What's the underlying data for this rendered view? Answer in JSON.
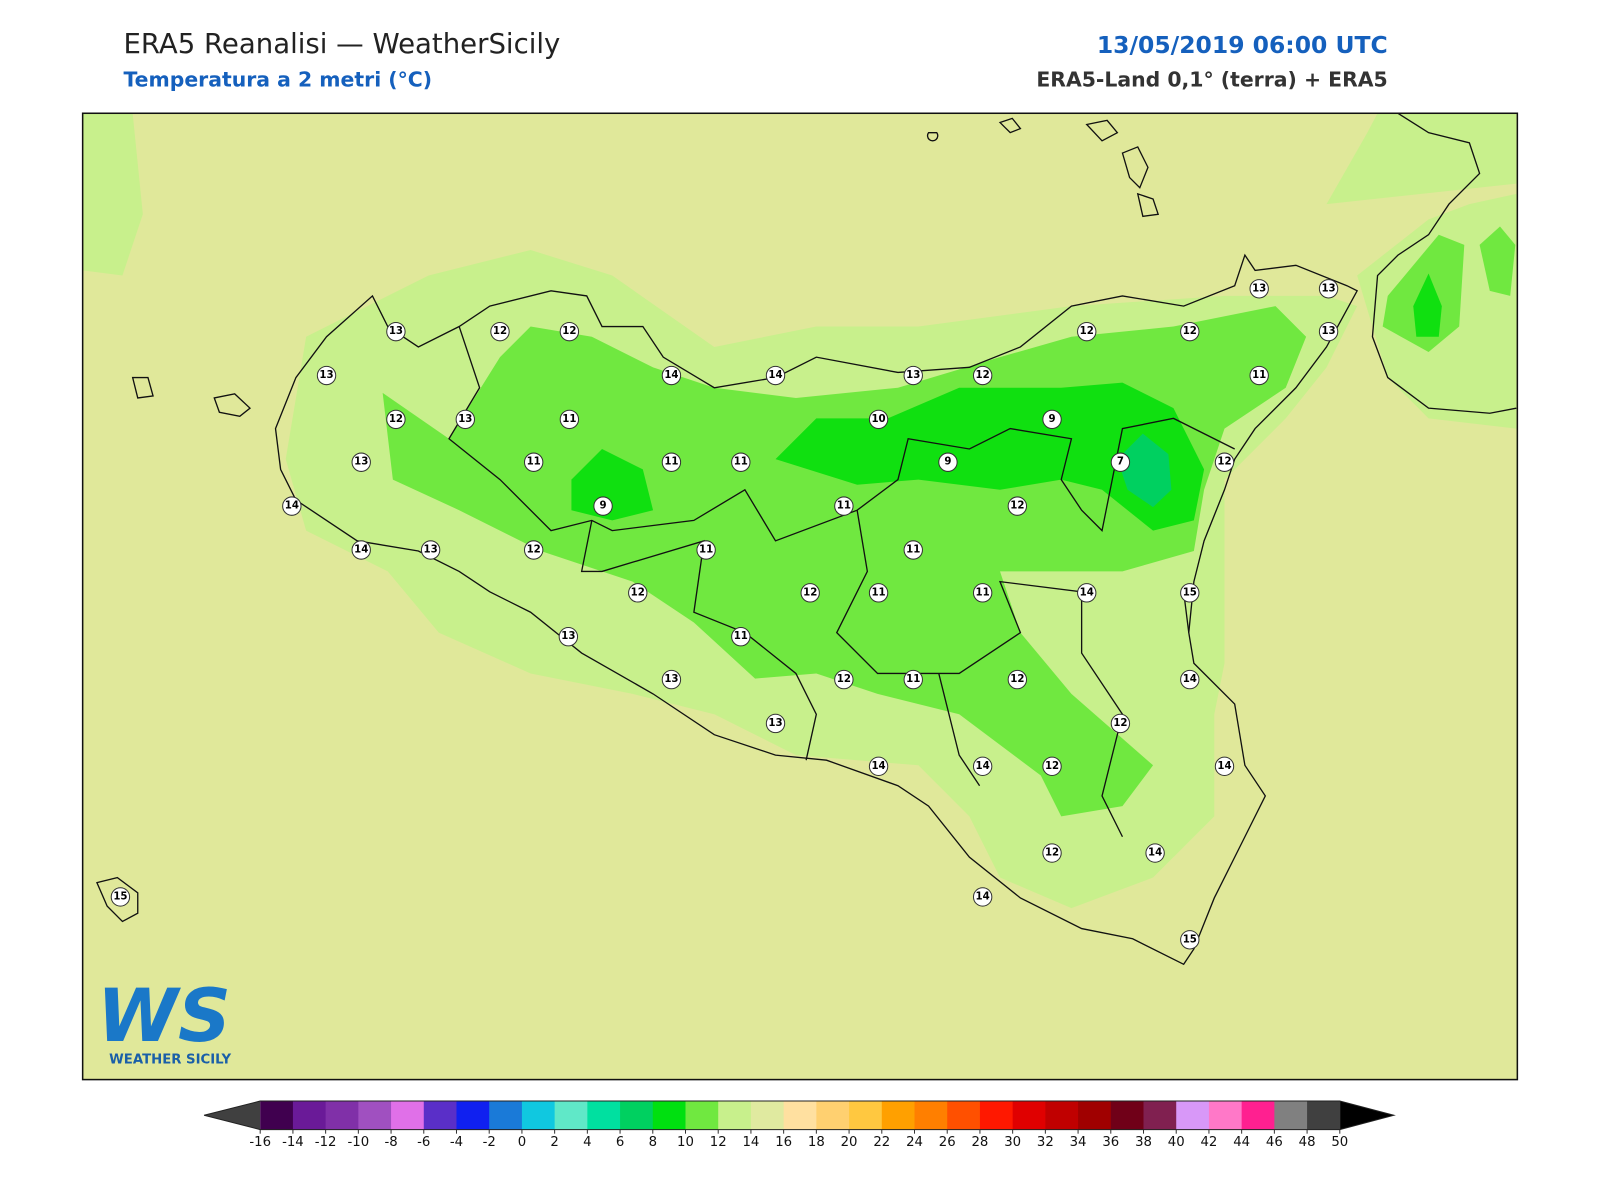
{
  "header": {
    "title": "ERA5 Reanalisi — WeatherSicily",
    "subtitle": "Temperatura a 2 metri (°C)",
    "datetime": "13/05/2019 06:00 UTC",
    "source": "ERA5-Land 0,1° (terra) + ERA5"
  },
  "stations": [
    13,
    12,
    12,
    13,
    14,
    14,
    13,
    12,
    12,
    12,
    13,
    13,
    13,
    11,
    12,
    13,
    11,
    10,
    9,
    13,
    11,
    11,
    11,
    9,
    7,
    12,
    14,
    9,
    11,
    12,
    14,
    13,
    12,
    11,
    11,
    12,
    12,
    11,
    11,
    14,
    15,
    13,
    11,
    13,
    12,
    11,
    12,
    14,
    12,
    13,
    14,
    14,
    12,
    14,
    12,
    14,
    15,
    14,
    15
  ],
  "colorbar": {
    "ticks": [
      -16,
      -14,
      -12,
      -10,
      -8,
      -6,
      -4,
      -2,
      0,
      2,
      4,
      6,
      8,
      10,
      12,
      14,
      16,
      18,
      20,
      22,
      24,
      26,
      28,
      30,
      32,
      34,
      36,
      38,
      40,
      42,
      44,
      46,
      48,
      50
    ],
    "colors": [
      "#40004f",
      "#6a1a98",
      "#8030a8",
      "#a050c0",
      "#e070e8",
      "#5a2fc8",
      "#1020f0",
      "#1a7ad8",
      "#10c8e0",
      "#60e8c8",
      "#00e0a0",
      "#00d060",
      "#00e010",
      "#70e840",
      "#c8f08c",
      "#e0eaa0",
      "#ffe0a0",
      "#ffd070",
      "#ffc840",
      "#ffa000",
      "#ff7f00",
      "#ff5000",
      "#ff1800",
      "#e00000",
      "#c00000",
      "#a00000",
      "#700018",
      "#802050",
      "#d898f8",
      "#ff78c8",
      "#ff2090",
      "#808080",
      "#404040"
    ],
    "under_color": "#404040",
    "over_color": "#000000"
  },
  "logo": {
    "letters": "WS",
    "text": "WEATHER SICILY"
  }
}
